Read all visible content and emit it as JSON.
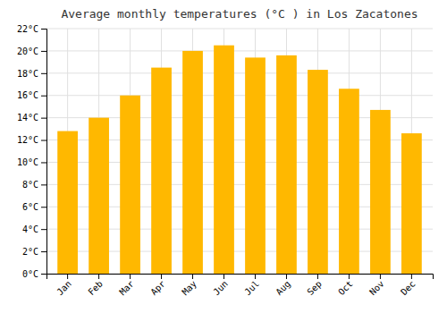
{
  "chart_data": {
    "type": "bar",
    "title": "Average monthly temperatures (°C ) in Los Zacatones",
    "categories": [
      "Jan",
      "Feb",
      "Mar",
      "Apr",
      "May",
      "Jun",
      "Jul",
      "Aug",
      "Sep",
      "Oct",
      "Nov",
      "Dec"
    ],
    "values": [
      12.8,
      14.0,
      16.0,
      18.5,
      20.0,
      20.5,
      19.4,
      19.6,
      18.3,
      16.6,
      14.7,
      12.6
    ],
    "color": "#FFB800",
    "ylim": [
      0,
      22
    ],
    "yticks": [
      {
        "value": 0,
        "label": "0°C"
      },
      {
        "value": 2,
        "label": "2°C"
      },
      {
        "value": 4,
        "label": "4°C"
      },
      {
        "value": 6,
        "label": "6°C"
      },
      {
        "value": 8,
        "label": "8°C"
      },
      {
        "value": 10,
        "label": "10°C"
      },
      {
        "value": 12,
        "label": "12°C"
      },
      {
        "value": 14,
        "label": "14°C"
      },
      {
        "value": 16,
        "label": "16°C"
      },
      {
        "value": 18,
        "label": "18°C"
      },
      {
        "value": 20,
        "label": "20°C"
      },
      {
        "value": 22,
        "label": "22°C"
      }
    ],
    "grid": true
  }
}
